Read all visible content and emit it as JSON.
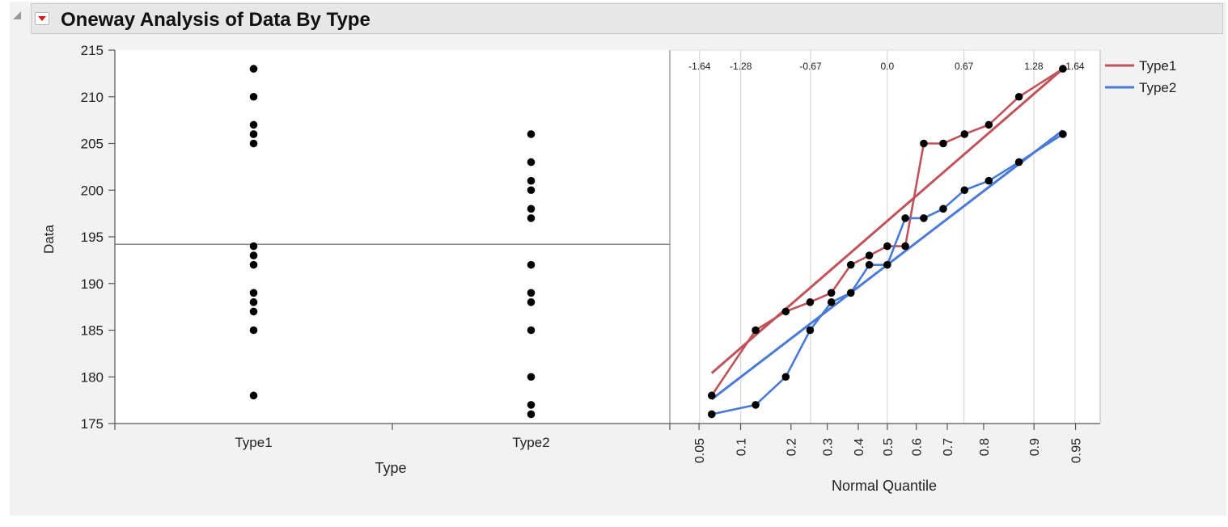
{
  "header": {
    "title": "Oneway Analysis of Data By Type"
  },
  "chart_data": [
    {
      "type": "scatter",
      "title": "",
      "xlabel": "Type",
      "ylabel": "Data",
      "ylim": [
        175,
        215
      ],
      "yticks": [
        "175",
        "180",
        "185",
        "190",
        "195",
        "200",
        "205",
        "210",
        "215"
      ],
      "categories": [
        "Type1",
        "Type2"
      ],
      "series": [
        {
          "category": "Type1",
          "values": [
            178,
            185,
            187,
            188,
            189,
            192,
            193,
            194,
            205,
            206,
            207,
            210,
            213
          ]
        },
        {
          "category": "Type2",
          "values": [
            176,
            177,
            180,
            185,
            188,
            189,
            192,
            197,
            198,
            200,
            201,
            203,
            206
          ]
        }
      ],
      "grand_mean": 194.2,
      "grid": false
    },
    {
      "type": "line",
      "title": "",
      "xlabel": "Normal Quantile",
      "ylim": [
        175,
        215
      ],
      "bottom_ticks": [
        "0.05",
        "0.1",
        "0.2",
        "0.3",
        "0.4",
        "0.5",
        "0.6",
        "0.7",
        "0.8",
        "0.9",
        "0.95"
      ],
      "top_ticks": [
        "-1.64",
        "-1.28",
        "-0.67",
        "0.0",
        "0.67",
        "1.28",
        "1.64"
      ],
      "grid": true,
      "legend_position": "top-right",
      "series": [
        {
          "name": "Type1",
          "color": "#c0525a",
          "probabilities": [
            0.0625,
            0.125,
            0.1875,
            0.25,
            0.3125,
            0.375,
            0.4375,
            0.5,
            0.5625,
            0.625,
            0.6875,
            0.75,
            0.8125,
            0.875,
            0.9375
          ],
          "values": [
            178,
            185,
            187,
            188,
            189,
            192,
            193,
            194,
            194,
            205,
            205,
            206,
            207,
            210,
            213
          ],
          "fit_line": {
            "p_start": 0.0625,
            "y_start": 180.4,
            "p_end": 0.9375,
            "y_end": 213
          }
        },
        {
          "name": "Type2",
          "color": "#4a7ad6",
          "probabilities": [
            0.0625,
            0.125,
            0.1875,
            0.25,
            0.3125,
            0.375,
            0.4375,
            0.5,
            0.5625,
            0.625,
            0.6875,
            0.75,
            0.8125,
            0.875,
            0.9375
          ],
          "values": [
            176,
            177,
            180,
            185,
            188,
            189,
            192,
            192,
            197,
            197,
            198,
            200,
            201,
            203,
            206
          ],
          "fit_line": {
            "p_start": 0.0625,
            "y_start": 177.6,
            "p_end": 0.9375,
            "y_end": 206.4
          }
        }
      ]
    }
  ]
}
